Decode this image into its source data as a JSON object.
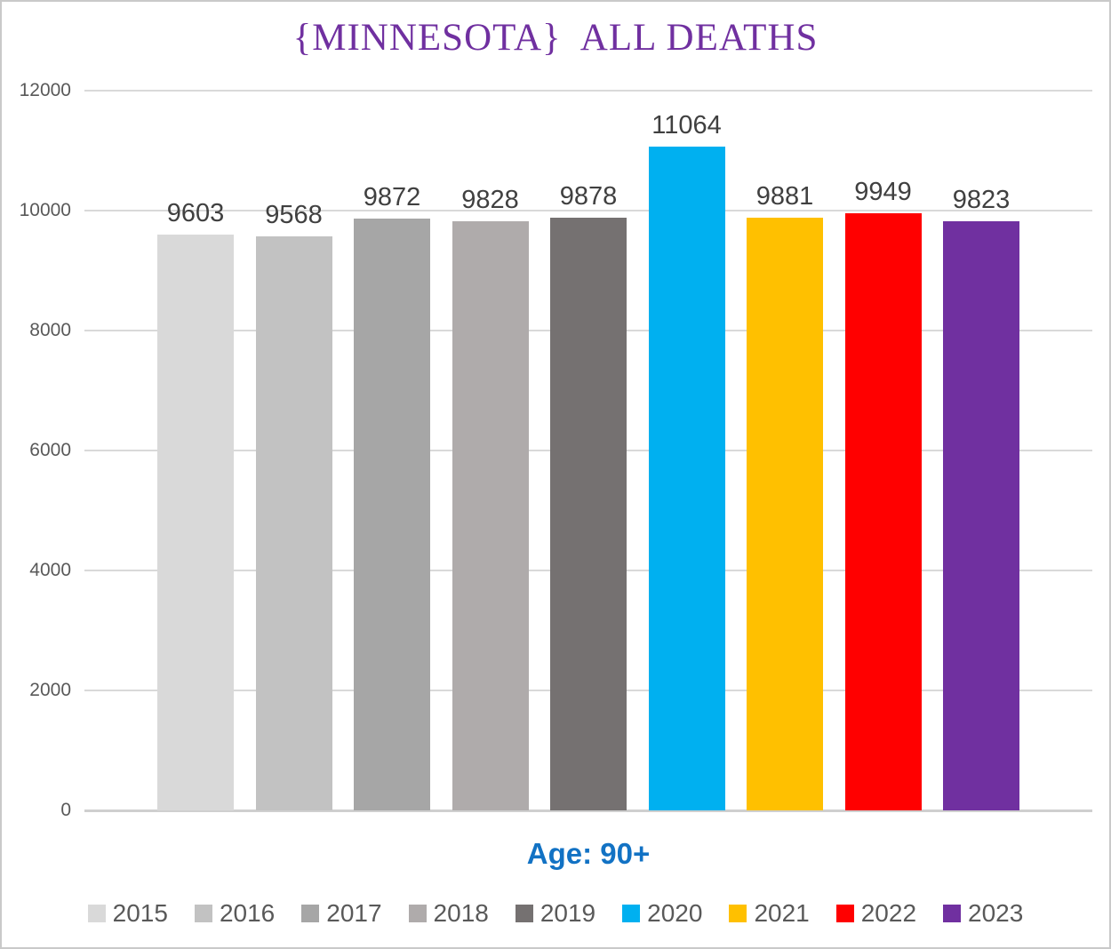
{
  "title": "{MINNESOTA}  ALL DEATHS",
  "subtitle": "Age: 90+",
  "chart_data": {
    "type": "bar",
    "title": "{MINNESOTA}  ALL DEATHS",
    "xlabel": "Age: 90+",
    "ylabel": "",
    "categories": [
      "2015",
      "2016",
      "2017",
      "2018",
      "2019",
      "2020",
      "2021",
      "2022",
      "2023"
    ],
    "values": [
      9603,
      9568,
      9872,
      9828,
      9878,
      11064,
      9881,
      9949,
      9823
    ],
    "bar_colors": [
      "#D9D9D9",
      "#C2C2C2",
      "#A6A6A6",
      "#AFABAB",
      "#757171",
      "#00B0F0",
      "#FFC000",
      "#FF0000",
      "#7030A0"
    ],
    "ylim": [
      0,
      12000
    ],
    "yticks": [
      12000,
      10000,
      8000,
      6000,
      4000,
      2000,
      0
    ],
    "grid": true,
    "legend_position": "bottom",
    "data_labels": true
  },
  "colors": {
    "title_text": "#7030A0",
    "subtitle_text": "#1272C4",
    "axis_text": "#595959",
    "data_label_text": "#404040",
    "gridline": "#D9D9D9",
    "background": "#FFFFFF",
    "frame_border": "#C9C9C9"
  }
}
